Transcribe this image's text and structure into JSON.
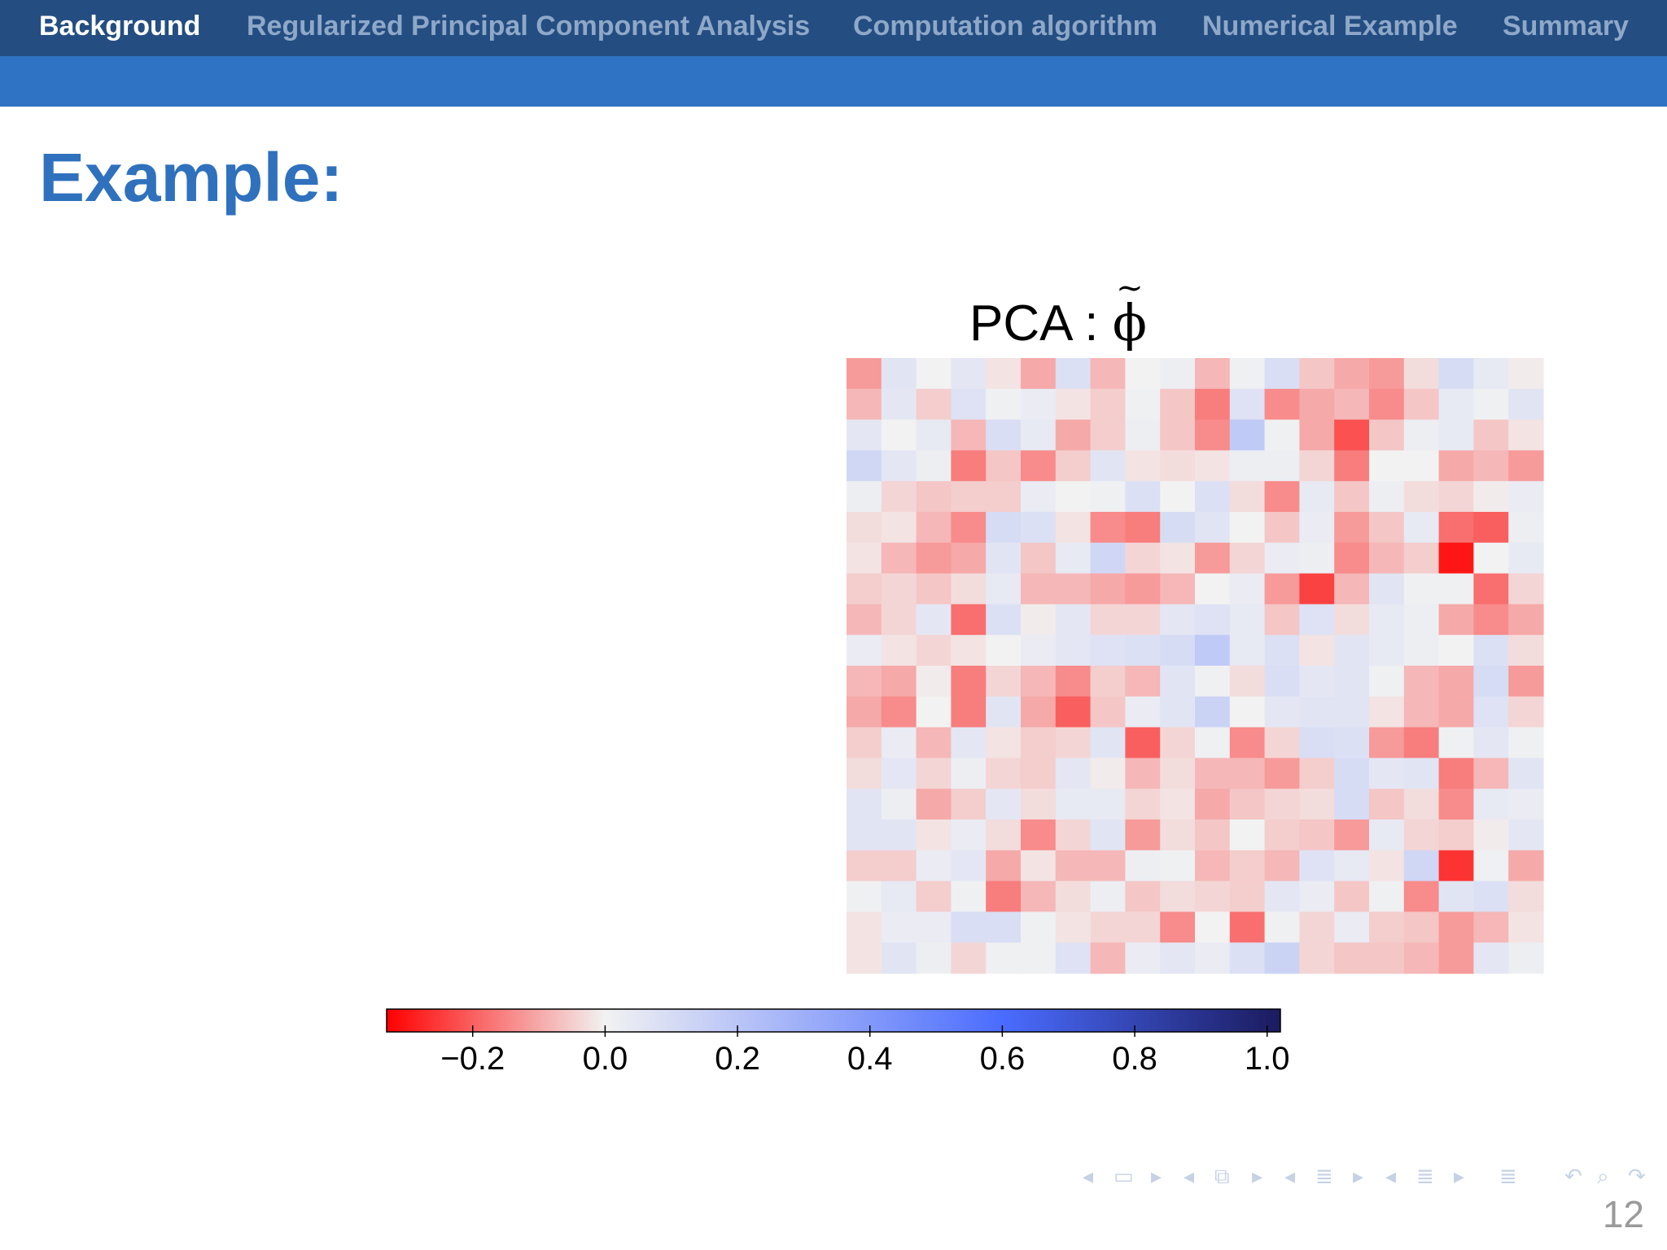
{
  "nav": {
    "sections": [
      "Background",
      "Regularized Principal Component Analysis",
      "Computation algorithm",
      "Numerical Example",
      "Summary"
    ],
    "active_index": 0
  },
  "slide": {
    "title": "Example:",
    "page_number": "12"
  },
  "chart_data": {
    "type": "heatmap",
    "title": "PCA : φ̃",
    "title_prefix": "PCA : ",
    "title_symbol": "ϕ",
    "title_accent": "~",
    "rows": 20,
    "cols": 20,
    "values": [
      [
        -0.12,
        0.06,
        0.0,
        0.05,
        -0.02,
        -0.1,
        0.08,
        -0.08,
        0.0,
        0.02,
        -0.08,
        0.01,
        0.09,
        -0.06,
        -0.1,
        -0.12,
        -0.03,
        0.1,
        0.04,
        -0.01
      ],
      [
        -0.08,
        0.05,
        -0.05,
        0.07,
        0.01,
        0.03,
        -0.02,
        -0.05,
        0.01,
        -0.06,
        -0.16,
        0.07,
        -0.14,
        -0.1,
        -0.08,
        -0.14,
        -0.06,
        0.04,
        0.01,
        0.06
      ],
      [
        0.05,
        0.0,
        0.04,
        -0.08,
        0.09,
        0.04,
        -0.1,
        -0.05,
        0.02,
        -0.06,
        -0.14,
        0.18,
        0.01,
        -0.1,
        -0.22,
        -0.06,
        0.02,
        0.04,
        -0.06,
        -0.02
      ],
      [
        0.12,
        0.05,
        0.02,
        -0.16,
        -0.06,
        -0.14,
        -0.05,
        0.06,
        -0.02,
        -0.03,
        -0.02,
        0.02,
        0.02,
        -0.04,
        -0.16,
        0.0,
        0.0,
        -0.1,
        -0.08,
        -0.12
      ],
      [
        0.02,
        -0.04,
        -0.06,
        -0.05,
        -0.05,
        0.03,
        0.0,
        0.01,
        0.08,
        0.0,
        0.08,
        -0.03,
        -0.14,
        0.04,
        -0.06,
        0.02,
        -0.03,
        -0.04,
        -0.01,
        0.03
      ],
      [
        -0.03,
        -0.02,
        -0.08,
        -0.14,
        0.1,
        0.08,
        -0.02,
        -0.14,
        -0.16,
        0.1,
        0.06,
        0.0,
        -0.06,
        0.03,
        -0.12,
        -0.06,
        0.04,
        -0.18,
        -0.2,
        0.02
      ],
      [
        -0.02,
        -0.08,
        -0.12,
        -0.1,
        0.06,
        -0.06,
        0.04,
        0.12,
        -0.04,
        -0.02,
        -0.12,
        -0.04,
        0.03,
        0.02,
        -0.14,
        -0.08,
        -0.05,
        -0.3,
        0.0,
        0.04
      ],
      [
        -0.05,
        -0.04,
        -0.06,
        -0.03,
        0.04,
        -0.08,
        -0.08,
        -0.1,
        -0.12,
        -0.08,
        0.0,
        0.03,
        -0.12,
        -0.24,
        -0.08,
        0.06,
        0.01,
        0.01,
        -0.18,
        -0.04
      ],
      [
        -0.08,
        -0.04,
        0.05,
        -0.18,
        0.08,
        -0.01,
        0.05,
        -0.04,
        -0.04,
        0.05,
        0.07,
        0.04,
        -0.06,
        0.07,
        -0.03,
        0.04,
        0.02,
        -0.1,
        -0.14,
        -0.1
      ],
      [
        0.03,
        -0.02,
        -0.04,
        -0.02,
        0.0,
        0.03,
        0.05,
        0.07,
        0.08,
        0.1,
        0.18,
        0.04,
        0.08,
        -0.02,
        0.06,
        0.04,
        0.02,
        0.0,
        0.08,
        -0.03
      ],
      [
        -0.08,
        -0.1,
        -0.01,
        -0.16,
        -0.04,
        -0.08,
        -0.14,
        -0.05,
        -0.08,
        0.06,
        0.01,
        -0.03,
        0.09,
        0.05,
        0.06,
        0.01,
        -0.08,
        -0.1,
        0.1,
        -0.12
      ],
      [
        -0.1,
        -0.14,
        0.0,
        -0.16,
        0.06,
        -0.1,
        -0.2,
        -0.06,
        0.03,
        0.06,
        0.14,
        0.0,
        0.05,
        0.06,
        0.06,
        -0.02,
        -0.08,
        -0.1,
        0.07,
        -0.04
      ],
      [
        -0.05,
        0.03,
        -0.08,
        0.05,
        -0.02,
        -0.05,
        -0.04,
        0.06,
        -0.2,
        -0.04,
        0.01,
        -0.14,
        -0.04,
        0.09,
        0.08,
        -0.12,
        -0.16,
        0.01,
        0.05,
        0.01
      ],
      [
        -0.03,
        0.05,
        -0.04,
        0.02,
        -0.04,
        -0.05,
        0.05,
        -0.01,
        -0.08,
        -0.03,
        -0.08,
        -0.08,
        -0.12,
        -0.05,
        0.1,
        0.05,
        0.06,
        -0.16,
        -0.08,
        0.06
      ],
      [
        0.06,
        0.02,
        -0.1,
        -0.05,
        0.05,
        -0.03,
        0.04,
        0.04,
        -0.04,
        -0.02,
        -0.1,
        -0.06,
        -0.04,
        -0.03,
        0.1,
        -0.06,
        -0.03,
        -0.14,
        0.04,
        0.03
      ],
      [
        0.06,
        0.06,
        -0.02,
        0.03,
        -0.03,
        -0.14,
        -0.04,
        0.06,
        -0.12,
        -0.03,
        -0.06,
        0.0,
        -0.05,
        -0.06,
        -0.12,
        0.04,
        -0.04,
        -0.05,
        -0.01,
        0.05
      ],
      [
        -0.05,
        -0.05,
        0.03,
        0.05,
        -0.1,
        -0.02,
        -0.08,
        -0.08,
        0.02,
        0.01,
        -0.08,
        -0.05,
        -0.08,
        0.07,
        0.04,
        -0.02,
        0.12,
        -0.26,
        0.01,
        -0.1
      ],
      [
        0.01,
        0.04,
        -0.05,
        0.01,
        -0.16,
        -0.08,
        -0.03,
        0.02,
        -0.06,
        -0.03,
        -0.04,
        -0.05,
        0.05,
        0.03,
        -0.06,
        0.01,
        -0.14,
        0.06,
        0.08,
        -0.03
      ],
      [
        -0.02,
        0.03,
        0.03,
        0.09,
        0.09,
        0.01,
        -0.02,
        -0.04,
        -0.04,
        -0.14,
        0.0,
        -0.18,
        0.01,
        -0.04,
        0.03,
        -0.05,
        -0.06,
        -0.12,
        -0.08,
        -0.02
      ],
      [
        -0.02,
        0.06,
        0.02,
        -0.04,
        0.01,
        0.01,
        0.07,
        -0.08,
        0.03,
        0.05,
        0.03,
        0.08,
        0.14,
        -0.04,
        -0.06,
        -0.06,
        -0.08,
        -0.12,
        0.05,
        0.02
      ]
    ],
    "colorbar": {
      "range": [
        -0.33,
        1.02
      ],
      "ticks": [
        -0.2,
        0.0,
        0.2,
        0.4,
        0.6,
        0.8,
        1.0
      ],
      "tick_labels": [
        "−0.2",
        "0.0",
        "0.2",
        "0.4",
        "0.6",
        "0.8",
        "1.0"
      ],
      "color_stops": [
        {
          "value": -0.33,
          "color": "#ff0000"
        },
        {
          "value": 0.0,
          "color": "#f2f2f2"
        },
        {
          "value": 0.6,
          "color": "#4a6cff"
        },
        {
          "value": 1.02,
          "color": "#1b1b5e"
        }
      ]
    }
  },
  "beamer_nav": {
    "symbols": [
      "◂",
      "▭",
      "▸",
      "◂",
      "⧉",
      "▸",
      "◂",
      "≣",
      "▸",
      "◂",
      "≣",
      "▸",
      "≣",
      "↶",
      "⌕",
      "↷"
    ],
    "icon_names": [
      "prev-frame-icon",
      "frame-icon",
      "next-frame-icon",
      "prev-subsection-icon",
      "subsection-icon",
      "next-subsection-icon",
      "prev-section-icon",
      "section-icon",
      "next-section-icon",
      "prev-document-icon",
      "document-icon",
      "next-document-icon",
      "toc-icon",
      "back-icon",
      "search-icon",
      "forward-icon"
    ]
  }
}
